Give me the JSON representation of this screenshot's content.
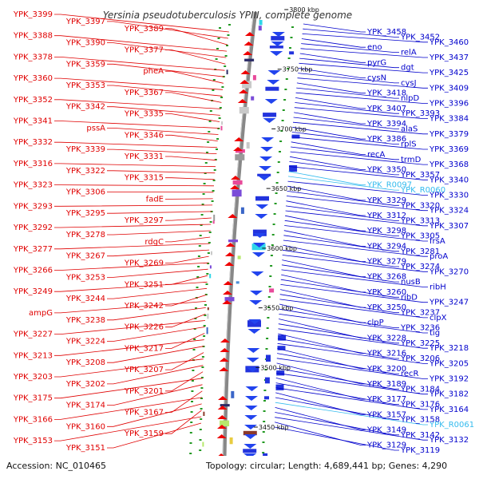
{
  "title": "Yersinia pseudotuberculosis YPIII, complete genome",
  "accession": "Accession: NC_010465",
  "topology": "Topology: circular; Length: 4,689,441 bp; Genes: 4,290",
  "colors": {
    "left": "#e00000",
    "right": "#0000cc",
    "rna": "#33bbee",
    "track": "#888888"
  },
  "scale_marks": [
    "3800 kbp",
    "3750 kbp",
    "3700 kbp",
    "3650 kbp",
    "3600 kbp",
    "3550 kbp",
    "3500 kbp",
    "3450 kbp"
  ],
  "left_labels": [
    "YPK_3399",
    "YPK_3397",
    "YPK_3389",
    "YPK_3388",
    "YPK_3390",
    "YPK_3377",
    "YPK_3378",
    "YPK_3359",
    "pheA",
    "YPK_3360",
    "YPK_3353",
    "YPK_3367",
    "YPK_3352",
    "YPK_3342",
    "YPK_3335",
    "YPK_3341",
    "pssA",
    "YPK_3346",
    "YPK_3332",
    "YPK_3339",
    "YPK_3331",
    "YPK_3316",
    "YPK_3322",
    "YPK_3315",
    "YPK_3323",
    "YPK_3306",
    "fadE",
    "YPK_3293",
    "YPK_3295",
    "YPK_3297",
    "YPK_3292",
    "YPK_3278",
    "rdgC",
    "YPK_3277",
    "YPK_3267",
    "YPK_3269",
    "YPK_3266",
    "YPK_3253",
    "YPK_3251",
    "YPK_3249",
    "YPK_3244",
    "YPK_3242",
    "ampG",
    "YPK_3238",
    "YPK_3226",
    "YPK_3227",
    "YPK_3224",
    "YPK_3217",
    "YPK_3213",
    "YPK_3208",
    "YPK_3207",
    "YPK_3203",
    "YPK_3202",
    "YPK_3201",
    "YPK_3175",
    "YPK_3174",
    "YPK_3167",
    "YPK_3166",
    "YPK_3160",
    "YPK_3159",
    "YPK_3153",
    "YPK_3151"
  ],
  "right_labels": [
    "YPK_3458",
    "YPK_3452",
    "YPK_3460",
    "eno",
    "relA",
    "YPK_3437",
    "pyrG",
    "dgt",
    "YPK_3425",
    "cysN",
    "cysJ",
    "YPK_3409",
    "YPK_3418",
    "nlpD",
    "YPK_3396",
    "YPK_3407",
    "YPK_3393",
    "YPK_3384",
    "YPK_3394",
    "alaS",
    "YPK_3379",
    "YPK_3386",
    "rplS",
    "YPK_3369",
    "recA",
    "trmD",
    "YPK_3368",
    "YPK_3350",
    "YPK_3357",
    "YPK_3340",
    "YPK_R0097",
    "YPK_R0060",
    "YPK_3330",
    "YPK_3329",
    "YPK_3320",
    "YPK_3324",
    "YPK_3312",
    "YPK_3313",
    "YPK_3307",
    "YPK_3298",
    "YPK_3305",
    "frsA",
    "YPK_3294",
    "YPK_3281",
    "proA",
    "YPK_3279",
    "YPK_3274",
    "YPK_3270",
    "YPK_3268",
    "nusB",
    "ribH",
    "YPK_3260",
    "ribD",
    "YPK_3247",
    "YPK_3250",
    "YPK_3237",
    "clpX",
    "clpP",
    "YPK_3236",
    "tig",
    "YPK_3228",
    "YPK_3225",
    "YPK_3218",
    "YPK_3216",
    "YPK_3206",
    "YPK_3205",
    "YPK_3200",
    "recR",
    "YPK_3192",
    "YPK_3189",
    "YPK_3184",
    "YPK_3182",
    "YPK_3177",
    "YPK_3176",
    "YPK_3164",
    "YPK_3157",
    "YPK_3158",
    "YPK_R0061",
    "YPK_3149",
    "YPK_3142",
    "YPK_3132",
    "YPK_3129",
    "YPK_3119"
  ]
}
